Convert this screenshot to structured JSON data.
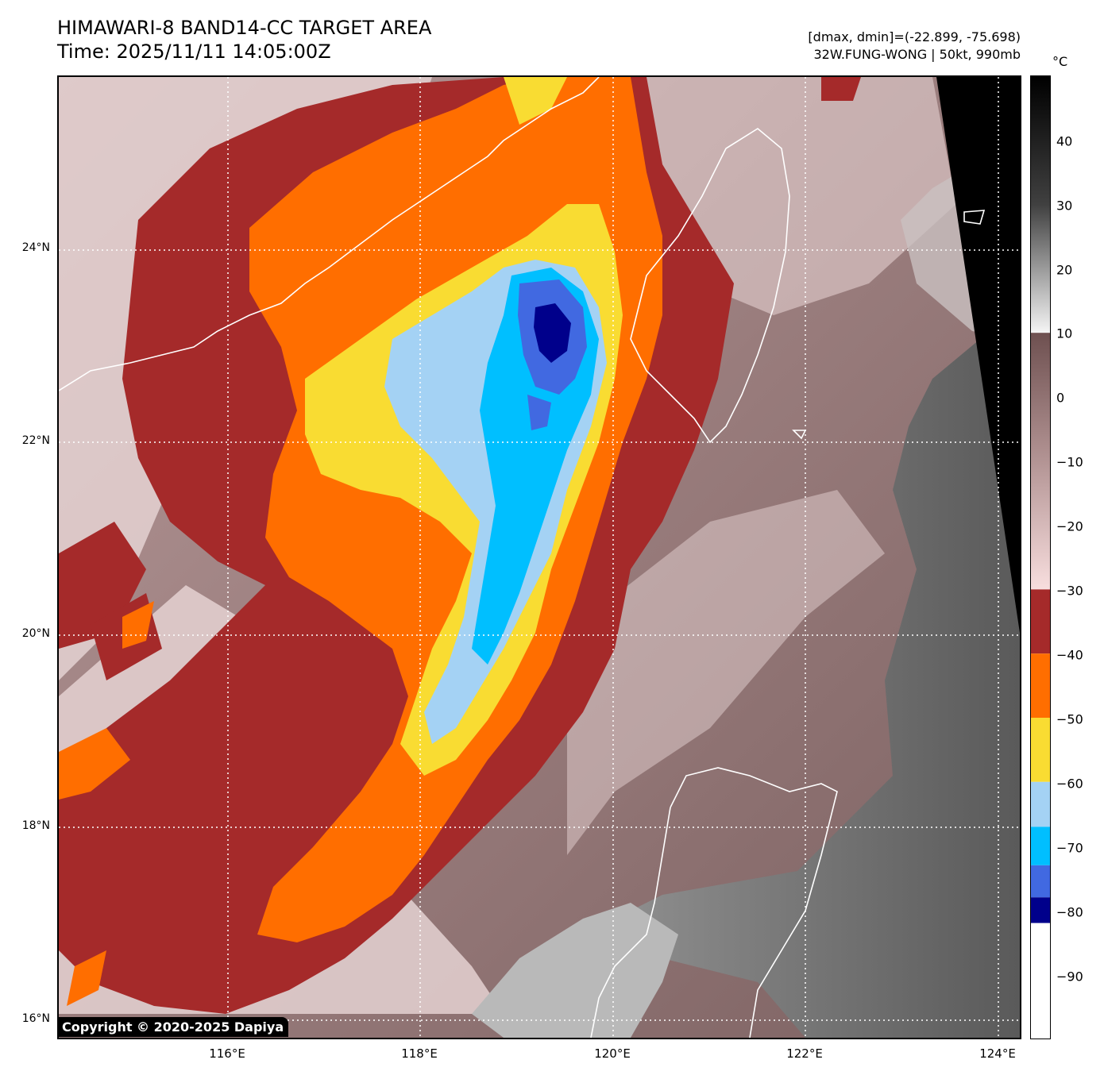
{
  "title_line1": "HIMAWARI-8 BAND14-CC TARGET AREA",
  "title_line2": "Time: 2025/11/11 14:05:00Z",
  "meta_line1": "[dmax, dmin]=(-22.899, -75.698)",
  "meta_line2": "32W.FUNG-WONG | 50kt, 990mb",
  "copyright": "Copyright © 2020-2025 Dapiya",
  "lat_labels": [
    "24°N",
    "22°N",
    "20°N",
    "18°N",
    "16°N"
  ],
  "lon_labels": [
    "116°E",
    "118°E",
    "120°E",
    "122°E",
    "124°E"
  ],
  "colorbar": {
    "unit": "°C",
    "ticks": [
      "40",
      "30",
      "20",
      "10",
      "0",
      "−10",
      "−20",
      "−30",
      "−40",
      "−50",
      "−60",
      "−70",
      "−80",
      "−90"
    ],
    "bands": [
      {
        "from": 10,
        "to": 50,
        "color": "#1a1a1a"
      },
      {
        "from": -30,
        "to": 10,
        "color": "#9a7a7a"
      },
      {
        "from": -40,
        "to": -30,
        "color": "#a52a2a"
      },
      {
        "from": -50,
        "to": -40,
        "color": "#ff6e00"
      },
      {
        "from": -60,
        "to": -50,
        "color": "#f9dc32"
      },
      {
        "from": -67,
        "to": -60,
        "color": "#a4d2f4"
      },
      {
        "from": -73,
        "to": -67,
        "color": "#00bfff"
      },
      {
        "from": -78,
        "to": -73,
        "color": "#4169e1"
      },
      {
        "from": -82,
        "to": -78,
        "color": "#00008b"
      },
      {
        "from": -100,
        "to": -82,
        "color": "#ffffff"
      }
    ]
  },
  "colors": {
    "warm_cloud": "#a52a2a",
    "cold_cloud": "#ff6e00",
    "very_cold": "#f9dc32",
    "light_blue": "#a4d2f4",
    "cyan": "#00bfff",
    "royal_blue": "#4169e1",
    "navy": "#00008b",
    "background_land": "#8a6c6c",
    "coastline": "#ffffff"
  }
}
